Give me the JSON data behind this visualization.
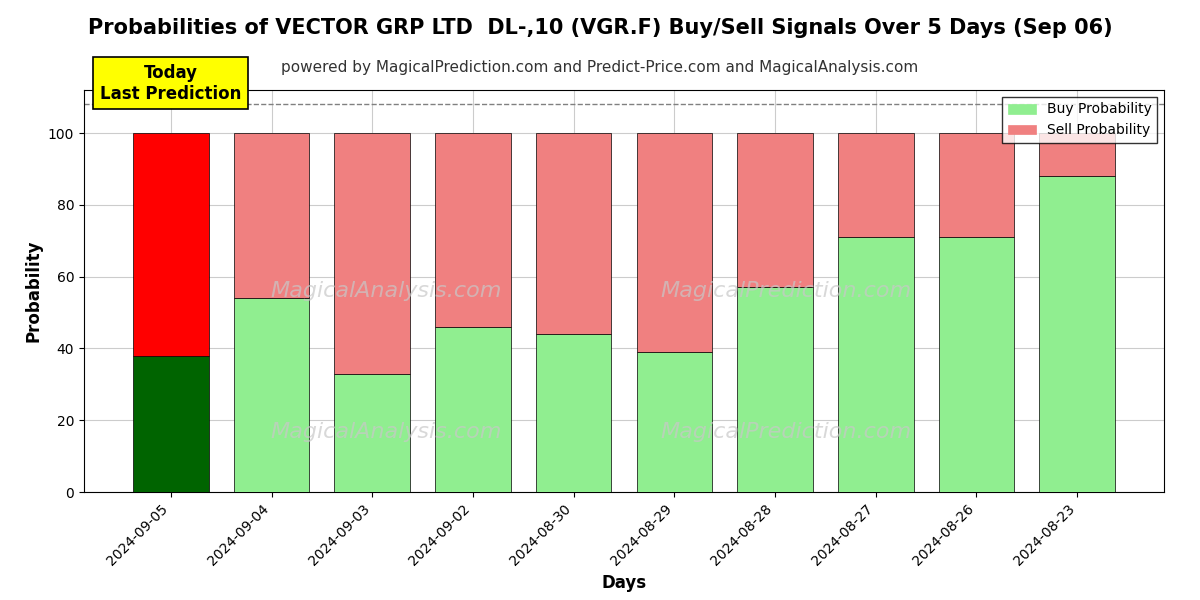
{
  "title": "Probabilities of VECTOR GRP LTD  DL-,10 (VGR.F) Buy/Sell Signals Over 5 Days (Sep 06)",
  "subtitle": "powered by MagicalPrediction.com and Predict-Price.com and MagicalAnalysis.com",
  "xlabel": "Days",
  "ylabel": "Probability",
  "dates": [
    "2024-09-05",
    "2024-09-04",
    "2024-09-03",
    "2024-09-02",
    "2024-08-30",
    "2024-08-29",
    "2024-08-28",
    "2024-08-27",
    "2024-08-26",
    "2024-08-23"
  ],
  "buy_probs": [
    38,
    54,
    33,
    46,
    44,
    39,
    57,
    71,
    71,
    88
  ],
  "sell_probs": [
    62,
    46,
    67,
    54,
    56,
    61,
    43,
    29,
    29,
    12
  ],
  "today_idx": 0,
  "buy_color_today": "#006400",
  "sell_color_today": "#FF0000",
  "buy_color_normal": "#90EE90",
  "sell_color_normal": "#F08080",
  "ylim": [
    0,
    112
  ],
  "yticks": [
    0,
    20,
    40,
    60,
    80,
    100
  ],
  "dashed_line_y": 108,
  "watermark_color": "#d0d0d0",
  "legend_buy_label": "Buy Probability",
  "legend_sell_label": "Sell Probability",
  "today_label_line1": "Today",
  "today_label_line2": "Last Prediction",
  "today_box_color": "#FFFF00",
  "bar_edge_color": "#000000",
  "bar_linewidth": 0.5,
  "grid_color": "#cccccc",
  "background_color": "#ffffff",
  "title_fontsize": 15,
  "subtitle_fontsize": 11,
  "axis_label_fontsize": 12,
  "tick_fontsize": 10
}
